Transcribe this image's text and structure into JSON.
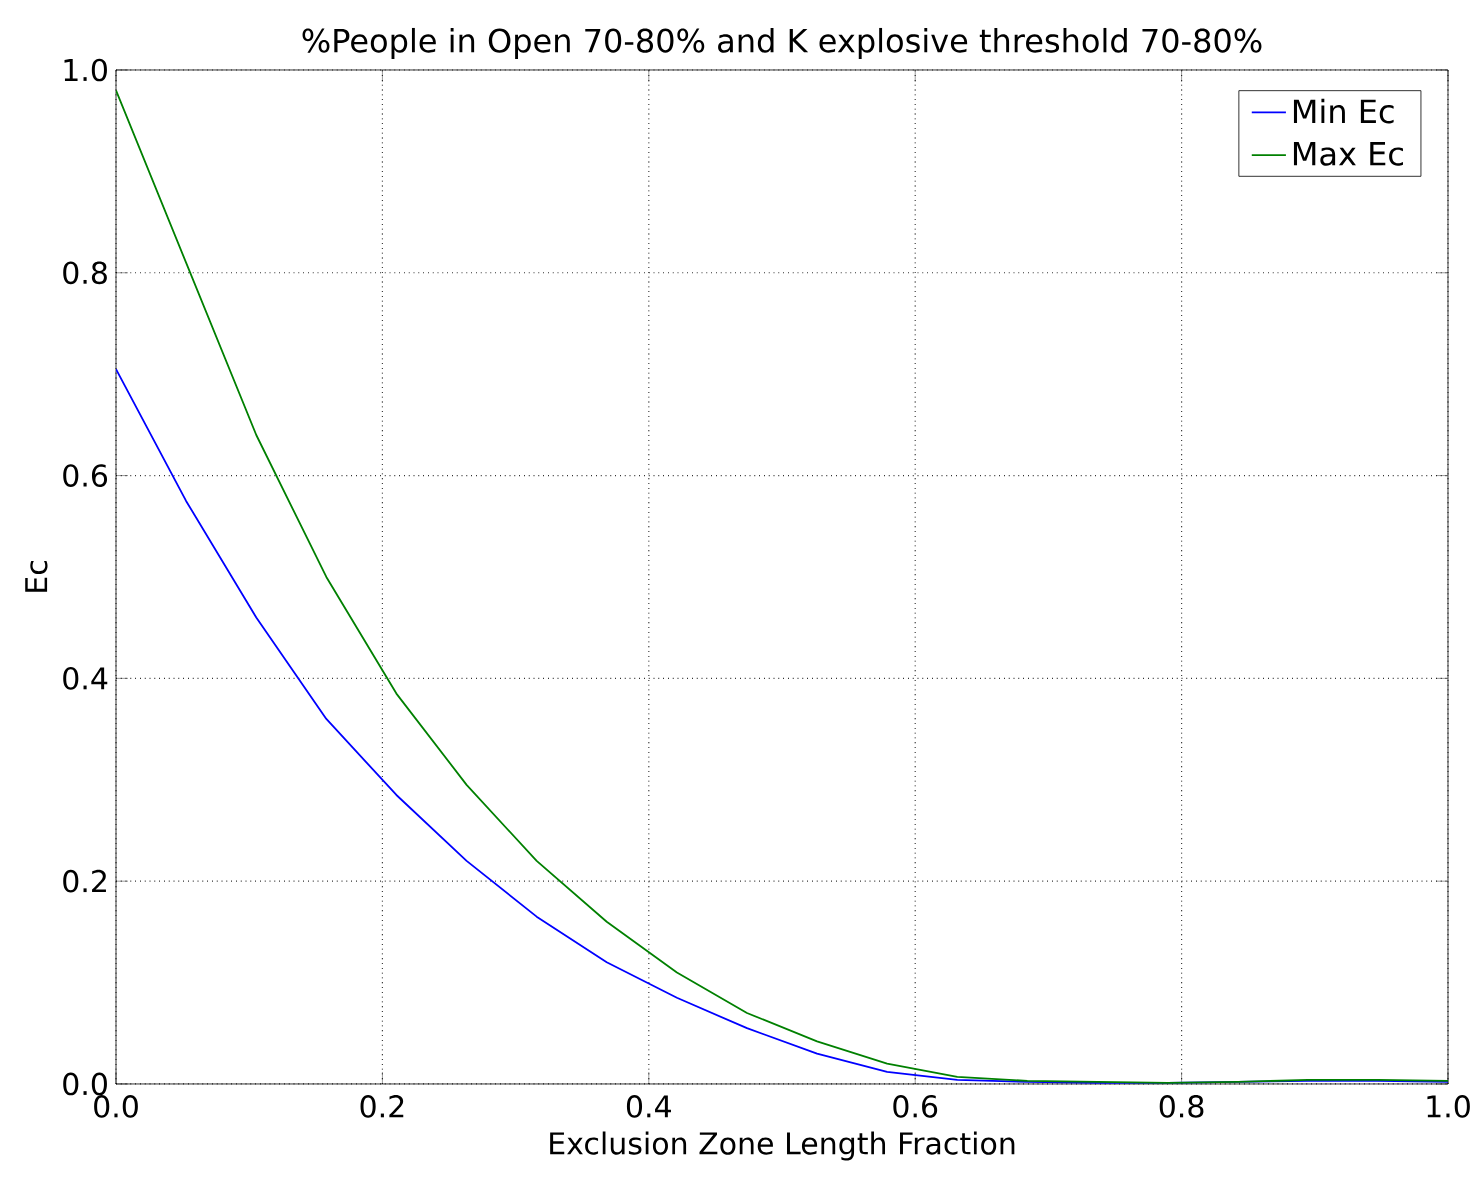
{
  "chart_data": {
    "type": "line",
    "title": "%People in Open 70-80% and K explosive threshold 70-80%",
    "xlabel": "Exclusion Zone Length Fraction",
    "ylabel": "Ec",
    "x": [
      0,
      0.0526,
      0.1053,
      0.1579,
      0.2105,
      0.2632,
      0.3158,
      0.3684,
      0.4211,
      0.4737,
      0.5263,
      0.5789,
      0.6316,
      0.6842,
      0.7368,
      0.7895,
      0.8421,
      0.8947,
      0.9474,
      1.0
    ],
    "series": [
      {
        "name": "Min Ec",
        "color": "#0000ff",
        "values": [
          0.705,
          0.575,
          0.46,
          0.36,
          0.285,
          0.22,
          0.165,
          0.12,
          0.085,
          0.055,
          0.03,
          0.012,
          0.004,
          0.002,
          0.001,
          0.001,
          0.002,
          0.003,
          0.003,
          0.002
        ]
      },
      {
        "name": "Max Ec",
        "color": "#008000",
        "values": [
          0.98,
          0.81,
          0.64,
          0.5,
          0.385,
          0.295,
          0.22,
          0.16,
          0.11,
          0.07,
          0.042,
          0.02,
          0.007,
          0.003,
          0.002,
          0.001,
          0.002,
          0.004,
          0.004,
          0.003
        ]
      }
    ],
    "xlim": [
      0,
      1
    ],
    "ylim": [
      0,
      1
    ],
    "xticks": [
      {
        "value": 0,
        "label": "0.0"
      },
      0.2,
      0.4,
      0.6,
      0.8,
      {
        "value": 1,
        "label": "1.0"
      }
    ],
    "yticks": [
      {
        "value": 0,
        "label": "0.0"
      },
      0.2,
      0.4,
      0.6,
      0.8,
      {
        "value": 1,
        "label": "1.0"
      }
    ],
    "grid": true,
    "legend": "top right",
    "line_style": "solid"
  }
}
